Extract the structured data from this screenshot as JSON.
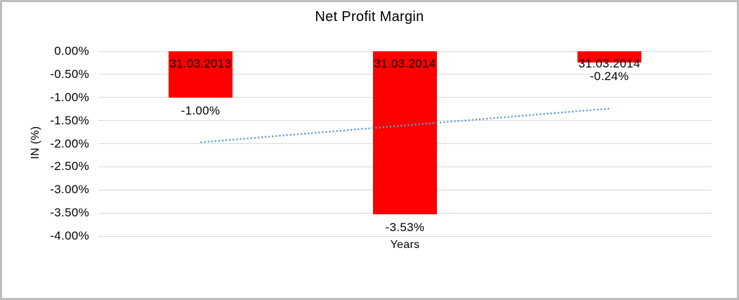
{
  "chart_data": {
    "type": "bar",
    "title": "Net Profit Margin",
    "xlabel": "Years",
    "ylabel": "IN (%)",
    "categories": [
      "31.03.2013",
      "31.03.2014",
      "31.03.2014"
    ],
    "values": [
      -1.0,
      -3.53,
      -0.24
    ],
    "value_labels": [
      "-1.00%",
      "-3.53%",
      "-0.24%"
    ],
    "ylim": [
      -4.0,
      0.0
    ],
    "yticks": [
      0,
      -0.5,
      -1.0,
      -1.5,
      -2.0,
      -2.5,
      -3.0,
      -3.5,
      -4.0
    ],
    "ytick_labels": [
      "0.00%",
      "-0.50%",
      "-1.00%",
      "-1.50%",
      "-2.00%",
      "-2.50%",
      "-3.00%",
      "-3.50%",
      "-4.00%"
    ],
    "grid": true,
    "legend": "none",
    "bar_color": "#ff0000",
    "grid_color": "#d9d9d9",
    "frame_border_color": "#bdbdbd",
    "label_color": "#000000",
    "trendline": {
      "type": "linear",
      "style": "dotted",
      "color": "#5b9bd5",
      "start_value": -1.97,
      "end_value": -1.24
    }
  }
}
